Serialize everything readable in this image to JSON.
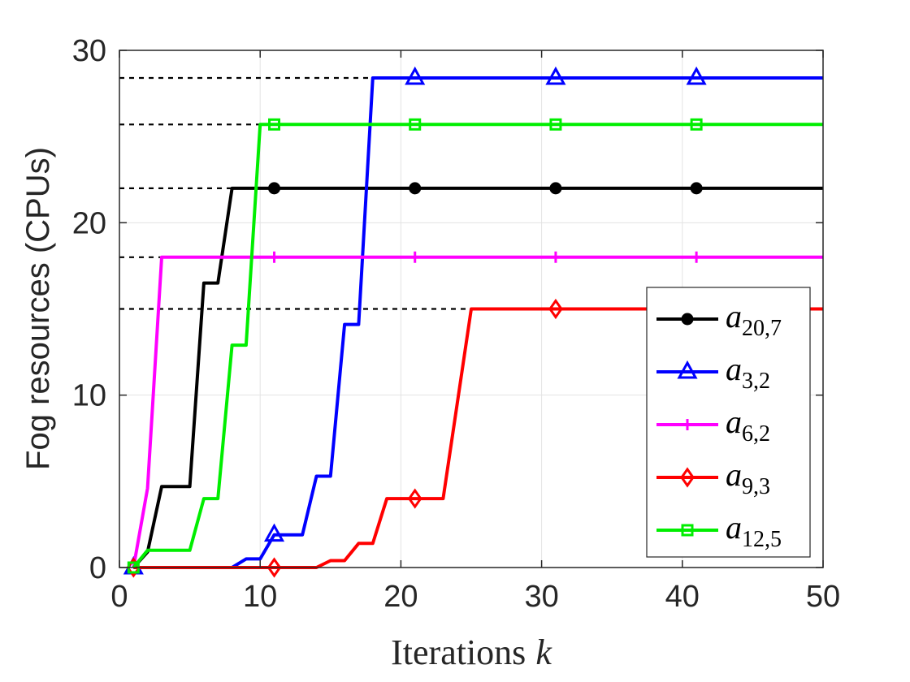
{
  "chart_data": {
    "type": "line",
    "xlabel": "Iterations",
    "xlabel_var": "k",
    "ylabel": "Fog resources (CPUs)",
    "xlim": [
      0,
      50
    ],
    "ylim": [
      0,
      30
    ],
    "xticks": [
      0,
      10,
      20,
      30,
      40,
      50
    ],
    "yticks": [
      0,
      10,
      20,
      30
    ],
    "xtick_labels": [
      "0",
      "10",
      "20",
      "30",
      "40",
      "50"
    ],
    "ytick_labels": [
      "0",
      "10",
      "20",
      "30"
    ],
    "grid": true,
    "legend_position": "lower-right",
    "reference_lines": [
      28.4,
      25.7,
      22.0,
      18.0,
      15.0
    ],
    "reference_line_style": "black dashed",
    "series": [
      {
        "name": "a",
        "subscript": "20,7",
        "color": "#000000",
        "marker": "circle",
        "x": [
          1,
          2,
          3,
          4,
          5,
          6,
          7,
          8,
          11,
          21,
          31,
          41,
          50
        ],
        "y": [
          0,
          0.9,
          4.7,
          4.7,
          4.7,
          16.5,
          16.5,
          22.0,
          22.0,
          22.0,
          22.0,
          22.0,
          22.0
        ],
        "markers_at": [
          11,
          21,
          31,
          41
        ]
      },
      {
        "name": "a",
        "subscript": "3,2",
        "color": "#0000ff",
        "marker": "triangle",
        "x": [
          1,
          8,
          9,
          10,
          11,
          12,
          13,
          14,
          15,
          16,
          17,
          18,
          21,
          31,
          41,
          50
        ],
        "y": [
          0,
          0,
          0.5,
          0.5,
          1.9,
          1.9,
          1.9,
          5.3,
          5.3,
          14.1,
          14.1,
          28.4,
          28.4,
          28.4,
          28.4,
          28.4
        ],
        "markers_at": [
          1,
          11,
          21,
          31,
          41
        ]
      },
      {
        "name": "a",
        "subscript": "6,2",
        "color": "#ff00ff",
        "marker": "plus",
        "x": [
          1,
          2,
          3,
          11,
          21,
          31,
          41,
          50
        ],
        "y": [
          0,
          4.6,
          18.0,
          18.0,
          18.0,
          18.0,
          18.0,
          18.0
        ],
        "markers_at": [
          11,
          21,
          31,
          41
        ]
      },
      {
        "name": "a",
        "subscript": "9,3",
        "color": "#ff0000",
        "marker": "diamond",
        "x": [
          1,
          11,
          14,
          15,
          16,
          17,
          18,
          19,
          20,
          21,
          22,
          23,
          24,
          25,
          31,
          41,
          50
        ],
        "y": [
          0,
          0,
          0,
          0.4,
          0.4,
          1.4,
          1.4,
          4.0,
          4.0,
          4.0,
          4.0,
          4.0,
          9.5,
          15.0,
          15.0,
          15.0,
          15.0
        ],
        "markers_at": [
          1,
          11,
          21,
          31
        ]
      },
      {
        "name": "a",
        "subscript": "12,5",
        "color": "#00ee00",
        "marker": "square",
        "x": [
          1,
          2,
          3,
          4,
          5,
          6,
          7,
          8,
          9,
          10,
          11,
          21,
          31,
          41,
          50
        ],
        "y": [
          0,
          1.0,
          1.0,
          1.0,
          1.0,
          4.0,
          4.0,
          12.9,
          12.9,
          25.7,
          25.7,
          25.7,
          25.7,
          25.7,
          25.7
        ],
        "markers_at": [
          1,
          11,
          21,
          31,
          41
        ]
      }
    ]
  }
}
